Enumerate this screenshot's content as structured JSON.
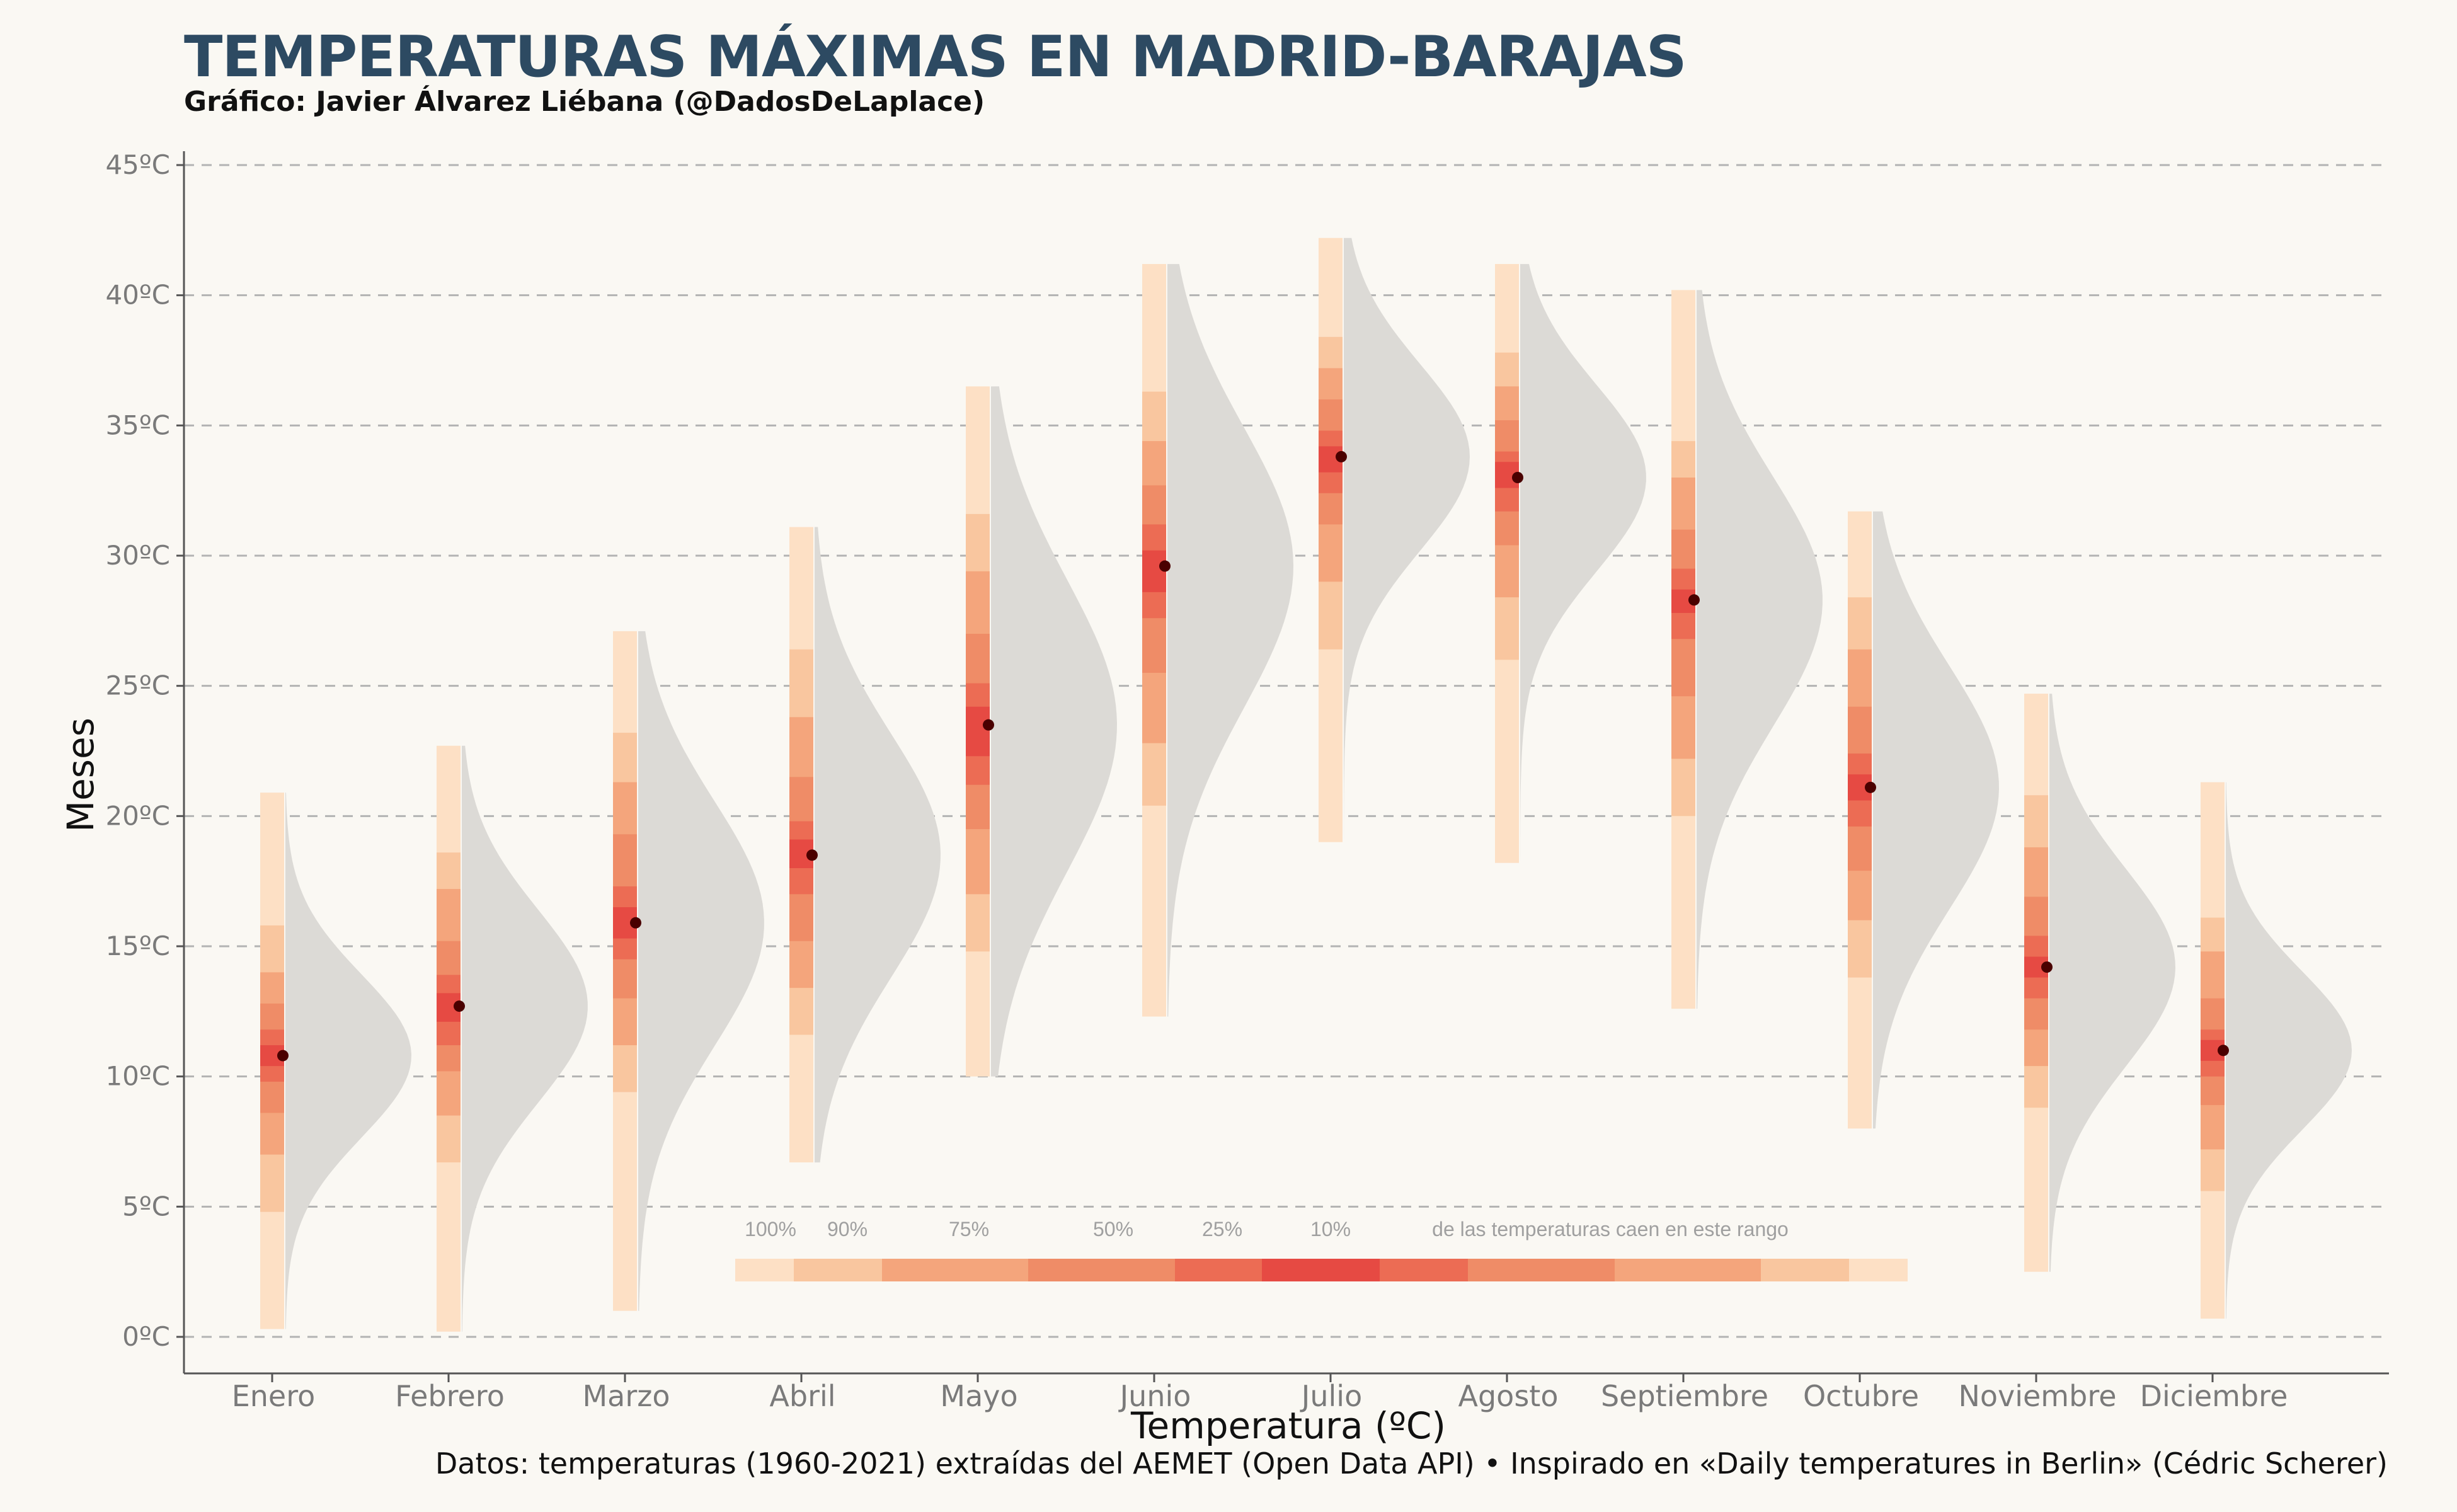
{
  "title": "TEMPERATURAS MÁXIMAS EN MADRID-BARAJAS",
  "subtitle": "Gráfico: Javier Álvarez Liébana (@DadosDeLaplace)",
  "caption": "Datos: temperaturas (1960-2021) extraídas del AEMET (Open Data API) • Inspirado en «Daily temperatures in Berlin» (Cédric Scherer)",
  "colors": {
    "background": "#faf8f3",
    "grid": "#b3b3b3",
    "density": "#dcdad6",
    "band_100": "#fde0c5",
    "band_90": "#f9c69f",
    "band_75": "#f4a57c",
    "band_50": "#ef8c67",
    "band_25": "#ec6c54",
    "band_10": "#e64a43",
    "median_dot": "#4a0000"
  },
  "legend": {
    "labels": [
      "100%",
      "90%",
      "75%",
      "50%",
      "25%",
      "10%"
    ],
    "note": "de las temperaturas caen en este rango"
  },
  "chart_data": {
    "type": "interval-density",
    "xlabel": "Temperatura (ºC)",
    "ylabel": "Meses",
    "ylim": [
      0,
      45
    ],
    "yticks": [
      0,
      5,
      10,
      15,
      20,
      25,
      30,
      35,
      40,
      45
    ],
    "ytick_labels": [
      "0ºC",
      "5ºC",
      "10ºC",
      "15ºC",
      "20ºC",
      "25ºC",
      "30ºC",
      "35ºC",
      "40ºC",
      "45ºC"
    ],
    "grid": "horizontal dashed",
    "categories": [
      "Enero",
      "Febrero",
      "Marzo",
      "Abril",
      "Mayo",
      "Junio",
      "Julio",
      "Agosto",
      "Septiembre",
      "Octubre",
      "Noviembre",
      "Diciembre"
    ],
    "intervals": [
      {
        "month": "Enero",
        "median": 10.8,
        "i100": [
          0.3,
          20.9
        ],
        "i90": [
          4.8,
          15.8
        ],
        "i75": [
          7.0,
          14.0
        ],
        "i50": [
          8.6,
          12.8
        ],
        "i25": [
          9.8,
          11.8
        ],
        "i10": [
          10.4,
          11.2
        ]
      },
      {
        "month": "Febrero",
        "median": 12.7,
        "i100": [
          0.2,
          22.7
        ],
        "i90": [
          6.7,
          18.6
        ],
        "i75": [
          8.5,
          17.2
        ],
        "i50": [
          10.2,
          15.2
        ],
        "i25": [
          11.2,
          13.9
        ],
        "i10": [
          12.1,
          13.2
        ]
      },
      {
        "month": "Marzo",
        "median": 15.9,
        "i100": [
          1.0,
          27.1
        ],
        "i90": [
          9.4,
          23.2
        ],
        "i75": [
          11.2,
          21.3
        ],
        "i50": [
          13.0,
          19.3
        ],
        "i25": [
          14.5,
          17.3
        ],
        "i10": [
          15.3,
          16.5
        ]
      },
      {
        "month": "Abril",
        "median": 18.5,
        "i100": [
          6.7,
          31.1
        ],
        "i90": [
          11.6,
          26.4
        ],
        "i75": [
          13.4,
          23.8
        ],
        "i50": [
          15.2,
          21.5
        ],
        "i25": [
          17.0,
          19.8
        ],
        "i10": [
          18.0,
          19.1
        ]
      },
      {
        "month": "Mayo",
        "median": 23.5,
        "i100": [
          10.0,
          36.5
        ],
        "i90": [
          14.8,
          31.6
        ],
        "i75": [
          17.0,
          29.4
        ],
        "i50": [
          19.5,
          27.0
        ],
        "i25": [
          21.2,
          25.1
        ],
        "i10": [
          22.3,
          24.2
        ]
      },
      {
        "month": "Junio",
        "median": 29.6,
        "i100": [
          12.3,
          41.2
        ],
        "i90": [
          20.4,
          36.3
        ],
        "i75": [
          22.8,
          34.4
        ],
        "i50": [
          25.5,
          32.7
        ],
        "i25": [
          27.6,
          31.2
        ],
        "i10": [
          28.6,
          30.2
        ]
      },
      {
        "month": "Julio",
        "median": 33.8,
        "i100": [
          19.0,
          42.2
        ],
        "i90": [
          26.4,
          38.4
        ],
        "i75": [
          29.0,
          37.2
        ],
        "i50": [
          31.2,
          36.0
        ],
        "i25": [
          32.4,
          34.8
        ],
        "i10": [
          33.2,
          34.2
        ]
      },
      {
        "month": "Agosto",
        "median": 33.0,
        "i100": [
          18.2,
          41.2
        ],
        "i90": [
          26.0,
          37.8
        ],
        "i75": [
          28.4,
          36.5
        ],
        "i50": [
          30.4,
          35.2
        ],
        "i25": [
          31.7,
          34.0
        ],
        "i10": [
          32.6,
          33.6
        ]
      },
      {
        "month": "Septiembre",
        "median": 28.3,
        "i100": [
          12.6,
          40.2
        ],
        "i90": [
          20.0,
          34.4
        ],
        "i75": [
          22.2,
          33.0
        ],
        "i50": [
          24.6,
          31.0
        ],
        "i25": [
          26.8,
          29.5
        ],
        "i10": [
          27.8,
          28.7
        ]
      },
      {
        "month": "Octubre",
        "median": 21.1,
        "i100": [
          8.0,
          31.7
        ],
        "i90": [
          13.8,
          28.4
        ],
        "i75": [
          16.0,
          26.4
        ],
        "i50": [
          17.9,
          24.2
        ],
        "i25": [
          19.6,
          22.4
        ],
        "i10": [
          20.6,
          21.6
        ]
      },
      {
        "month": "Noviembre",
        "median": 14.2,
        "i100": [
          2.5,
          24.7
        ],
        "i90": [
          8.8,
          20.8
        ],
        "i75": [
          10.4,
          18.8
        ],
        "i50": [
          11.8,
          16.9
        ],
        "i25": [
          13.0,
          15.4
        ],
        "i10": [
          13.8,
          14.6
        ]
      },
      {
        "month": "Diciembre",
        "median": 11.0,
        "i100": [
          0.7,
          21.3
        ],
        "i90": [
          5.6,
          16.1
        ],
        "i75": [
          7.2,
          14.8
        ],
        "i50": [
          8.9,
          13.0
        ],
        "i25": [
          10.0,
          11.8
        ],
        "i10": [
          10.6,
          11.4
        ]
      }
    ]
  }
}
